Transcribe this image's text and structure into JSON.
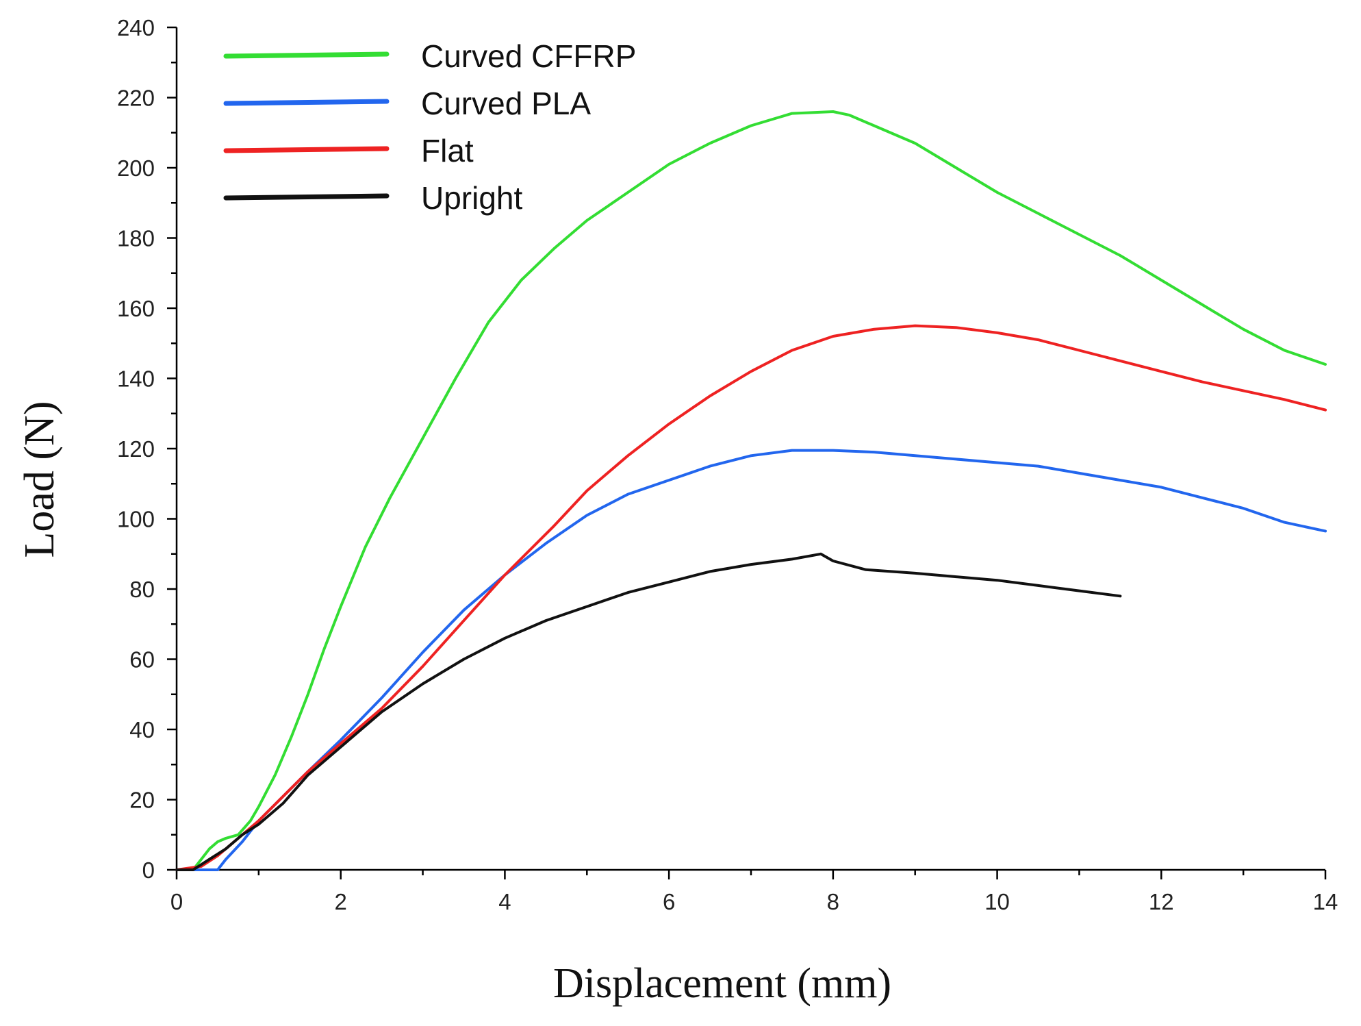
{
  "chart_data": {
    "type": "line",
    "title": "",
    "xlabel": "Displacement (mm)",
    "ylabel": "Load (N)",
    "xlim": [
      0,
      14
    ],
    "ylim": [
      0,
      240
    ],
    "xticks": [
      0,
      2,
      4,
      6,
      8,
      10,
      12,
      14
    ],
    "yticks": [
      0,
      20,
      40,
      60,
      80,
      100,
      120,
      140,
      160,
      180,
      200,
      220,
      240
    ],
    "xtick_labels": [
      "0",
      "2",
      "4",
      "6",
      "8",
      "10",
      "12",
      "14"
    ],
    "ytick_labels": [
      "0",
      "20",
      "40",
      "60",
      "80",
      "100",
      "120",
      "140",
      "160",
      "180",
      "200",
      "220",
      "240"
    ],
    "grid": false,
    "legend_position": "top-left",
    "series": [
      {
        "name": "Curved CFFRP",
        "color": "#33dd33",
        "x": [
          0,
          0.2,
          0.3,
          0.4,
          0.5,
          0.6,
          0.75,
          0.9,
          1.0,
          1.2,
          1.4,
          1.6,
          1.8,
          2.0,
          2.3,
          2.6,
          3.0,
          3.4,
          3.8,
          4.2,
          4.6,
          5.0,
          5.5,
          6.0,
          6.5,
          7.0,
          7.5,
          8.0,
          8.2,
          8.5,
          9.0,
          9.5,
          10.0,
          10.5,
          11.0,
          11.5,
          12.0,
          12.5,
          13.0,
          13.5,
          14.0
        ],
        "y": [
          0,
          0,
          3,
          6,
          8,
          9,
          10,
          14,
          18,
          27,
          38,
          50,
          63,
          75,
          92,
          106,
          123,
          140,
          156,
          168,
          177,
          185,
          193,
          201,
          207,
          212,
          215.5,
          216,
          215,
          212,
          207,
          200,
          193,
          187,
          181,
          175,
          168,
          161,
          154,
          148,
          144
        ]
      },
      {
        "name": "Curved PLA",
        "color": "#2266ee",
        "x": [
          0,
          0.3,
          0.5,
          0.6,
          0.8,
          1.0,
          1.3,
          1.6,
          2.0,
          2.5,
          3.0,
          3.5,
          4.0,
          4.5,
          5.0,
          5.5,
          6.0,
          6.5,
          7.0,
          7.5,
          8.0,
          8.5,
          9.0,
          9.5,
          10.0,
          10.5,
          11.0,
          11.5,
          12.0,
          12.5,
          13.0,
          13.5,
          14.0
        ],
        "y": [
          0,
          0,
          0,
          3,
          8,
          14,
          21,
          28,
          37,
          49,
          62,
          74,
          84,
          93,
          101,
          107,
          111,
          115,
          118,
          119.5,
          119.5,
          119,
          118,
          117,
          116,
          115,
          113,
          111,
          109,
          106,
          103,
          99,
          96.5
        ]
      },
      {
        "name": "Flat",
        "color": "#ee2222",
        "x": [
          0,
          0.3,
          0.5,
          0.7,
          1.0,
          1.3,
          1.6,
          2.0,
          2.5,
          3.0,
          3.5,
          4.0,
          4.6,
          5.0,
          5.5,
          6.0,
          6.5,
          7.0,
          7.5,
          8.0,
          8.5,
          9.0,
          9.5,
          10.0,
          10.5,
          11.0,
          11.5,
          12.0,
          12.5,
          13.0,
          13.5,
          14.0
        ],
        "y": [
          0,
          1,
          4,
          8,
          14,
          21,
          28,
          36,
          46,
          58,
          71,
          84,
          98,
          108,
          118,
          127,
          135,
          142,
          148,
          152,
          154,
          155,
          154.5,
          153,
          151,
          148,
          145,
          142,
          139,
          136.5,
          134,
          131
        ]
      },
      {
        "name": "Upright",
        "color": "#111111",
        "x": [
          0,
          0.2,
          0.4,
          0.6,
          0.8,
          1.0,
          1.3,
          1.6,
          2.0,
          2.5,
          3.0,
          3.5,
          4.0,
          4.5,
          5.0,
          5.5,
          6.0,
          6.5,
          7.0,
          7.5,
          7.85,
          8.0,
          8.4,
          9.0,
          9.5,
          10.0,
          10.5,
          11.0,
          11.5
        ],
        "y": [
          0,
          0,
          3,
          6,
          10,
          13,
          19,
          27,
          35,
          45,
          53,
          60,
          66,
          71,
          75,
          79,
          82,
          85,
          87,
          88.5,
          90,
          88,
          85.5,
          84.5,
          83.5,
          82.5,
          81,
          79.5,
          78
        ]
      }
    ]
  }
}
